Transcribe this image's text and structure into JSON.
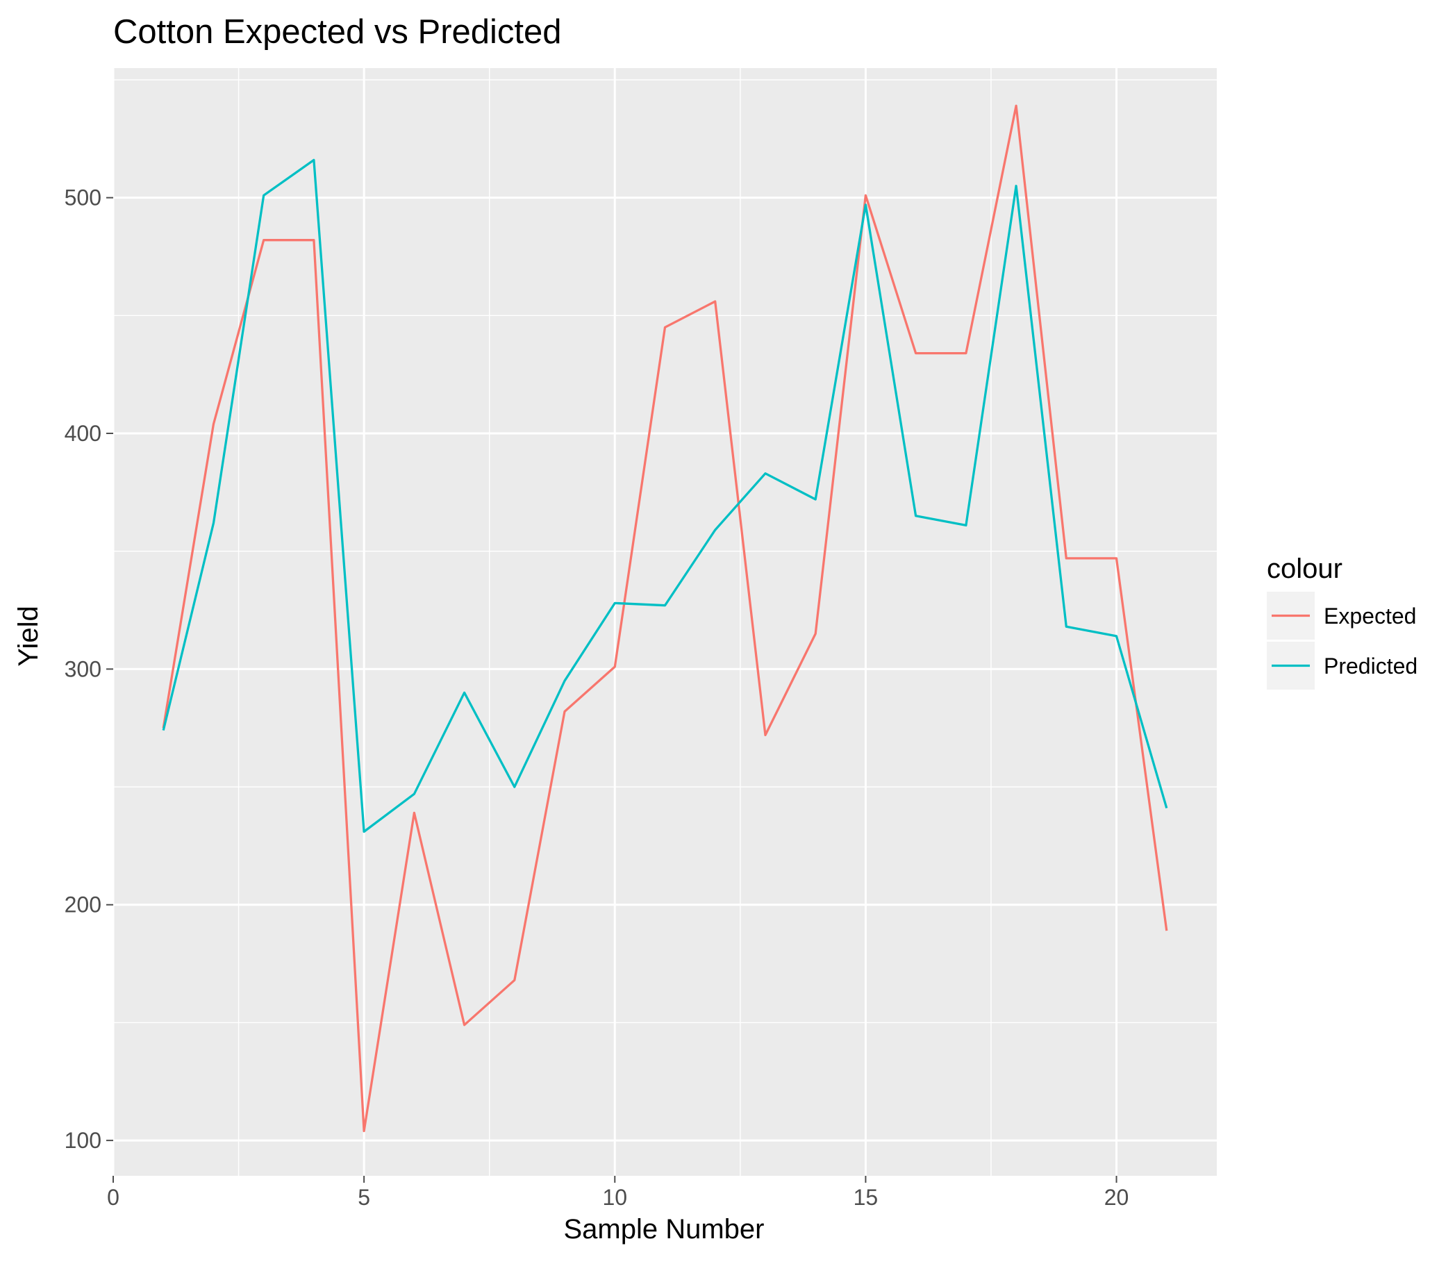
{
  "chart_data": {
    "type": "line",
    "title": "Cotton Expected vs Predicted",
    "xlabel": "Sample Number",
    "ylabel": "Yield",
    "xlim": [
      0,
      22
    ],
    "ylim": [
      85,
      555
    ],
    "x_ticks": [
      0,
      5,
      10,
      15,
      20
    ],
    "x_tick_labels": [
      "0",
      "5",
      "10",
      "15",
      "20"
    ],
    "y_ticks": [
      100,
      200,
      300,
      400,
      500
    ],
    "y_tick_labels": [
      "100",
      "200",
      "300",
      "400",
      "500"
    ],
    "grid": true,
    "legend": {
      "title": "colour",
      "position": "right"
    },
    "x": [
      1,
      2,
      3,
      4,
      5,
      6,
      7,
      8,
      9,
      10,
      11,
      12,
      13,
      14,
      15,
      16,
      17,
      18,
      19,
      20,
      21
    ],
    "series": [
      {
        "name": "Expected",
        "color": "#F8766D",
        "values": [
          275,
          404,
          482,
          482,
          104,
          239,
          149,
          168,
          282,
          301,
          445,
          456,
          272,
          315,
          501,
          434,
          434,
          539,
          347,
          347,
          189
        ]
      },
      {
        "name": "Predicted",
        "color": "#00BFC4",
        "values": [
          274,
          362,
          501,
          516,
          231,
          247,
          290,
          250,
          295,
          328,
          327,
          359,
          383,
          372,
          497,
          365,
          361,
          505,
          318,
          314,
          241
        ]
      }
    ],
    "colors": {
      "panel": "#EBEBEB",
      "grid": "#FFFFFF",
      "ticks": "#4D4D4D",
      "legend_key": "#F2F2F2"
    }
  }
}
